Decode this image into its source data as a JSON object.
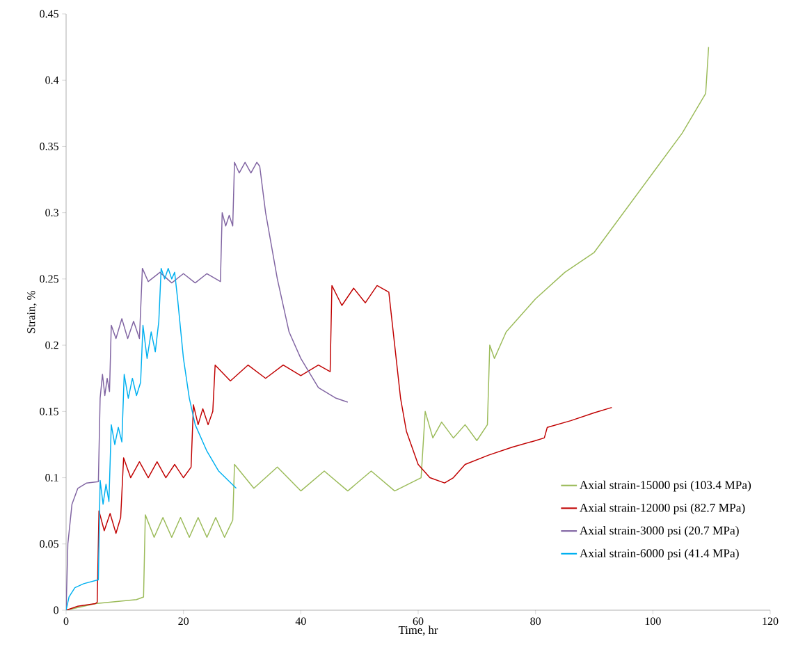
{
  "chart_data": {
    "type": "line",
    "xlabel": "Time, hr",
    "ylabel": "Strain, %",
    "xlim": [
      0,
      120
    ],
    "xticks": [
      0,
      20,
      40,
      60,
      80,
      100,
      120
    ],
    "ylim": [
      0,
      0.45
    ],
    "yticks": [
      0,
      0.05,
      0.1,
      0.15,
      0.2,
      0.25,
      0.3,
      0.35,
      0.4,
      0.45
    ],
    "grid": false,
    "legend": "bottom right",
    "series": [
      {
        "name": "Axial strain-15000 psi (103.4 MPa)",
        "color": "#9bbb59",
        "x": [
          0,
          5,
          12,
          13.2,
          13.5,
          15,
          16.5,
          18,
          19.5,
          21,
          22.5,
          24,
          25.5,
          27,
          28.4,
          28.7,
          32,
          36,
          40,
          44,
          48,
          52,
          56,
          60.5,
          61.2,
          62.5,
          64,
          66,
          68,
          70,
          71.8,
          72.2,
          73,
          75,
          80,
          85,
          90,
          95,
          100,
          105,
          109,
          109.5
        ],
        "values": [
          0,
          0.005,
          0.008,
          0.01,
          0.072,
          0.055,
          0.07,
          0.055,
          0.07,
          0.055,
          0.07,
          0.055,
          0.07,
          0.055,
          0.068,
          0.11,
          0.092,
          0.108,
          0.09,
          0.105,
          0.09,
          0.105,
          0.09,
          0.1,
          0.15,
          0.13,
          0.142,
          0.13,
          0.14,
          0.128,
          0.14,
          0.2,
          0.19,
          0.21,
          0.235,
          0.255,
          0.27,
          0.3,
          0.33,
          0.36,
          0.39,
          0.425
        ]
      },
      {
        "name": "Axial strain-12000 psi (82.7 MPa)",
        "color": "#c00000",
        "x": [
          0,
          2,
          5,
          5.3,
          5.6,
          6.5,
          7.5,
          8.5,
          9.3,
          9.8,
          11,
          12.5,
          14,
          15.5,
          17,
          18.5,
          20,
          21.3,
          21.7,
          22.5,
          23.3,
          24.2,
          25,
          25.4,
          28,
          31,
          34,
          37,
          40,
          43,
          45,
          45.3,
          47,
          49,
          51,
          53,
          55,
          56,
          57,
          58,
          60,
          62,
          64.5,
          66,
          68,
          72,
          76,
          80,
          81.5,
          82,
          86,
          90,
          93
        ],
        "values": [
          0,
          0.003,
          0.005,
          0.006,
          0.075,
          0.06,
          0.073,
          0.058,
          0.07,
          0.115,
          0.1,
          0.112,
          0.1,
          0.112,
          0.1,
          0.11,
          0.1,
          0.108,
          0.155,
          0.14,
          0.152,
          0.14,
          0.15,
          0.185,
          0.173,
          0.185,
          0.175,
          0.185,
          0.177,
          0.185,
          0.18,
          0.245,
          0.23,
          0.243,
          0.232,
          0.245,
          0.24,
          0.2,
          0.16,
          0.135,
          0.11,
          0.1,
          0.096,
          0.1,
          0.11,
          0.117,
          0.123,
          0.128,
          0.13,
          0.138,
          0.143,
          0.149,
          0.153
        ]
      },
      {
        "name": "Axial strain-3000 psi (20.7 MPa)",
        "color": "#8064a2",
        "x": [
          0,
          0.3,
          1,
          2,
          3.5,
          5.5,
          5.8,
          6.2,
          6.6,
          7,
          7.4,
          7.7,
          8.5,
          9.5,
          10.5,
          11.5,
          12.5,
          13,
          14,
          16,
          18,
          20,
          22,
          24,
          26.3,
          26.6,
          27.2,
          27.8,
          28.4,
          28.7,
          29.5,
          30.5,
          31.5,
          32.5,
          33,
          34,
          36,
          38,
          40,
          43,
          46,
          48
        ],
        "values": [
          0,
          0.05,
          0.08,
          0.092,
          0.096,
          0.097,
          0.16,
          0.178,
          0.162,
          0.175,
          0.165,
          0.215,
          0.205,
          0.22,
          0.205,
          0.218,
          0.205,
          0.258,
          0.248,
          0.255,
          0.247,
          0.254,
          0.247,
          0.254,
          0.248,
          0.3,
          0.29,
          0.298,
          0.29,
          0.338,
          0.33,
          0.338,
          0.33,
          0.338,
          0.335,
          0.3,
          0.25,
          0.21,
          0.19,
          0.168,
          0.16,
          0.157
        ]
      },
      {
        "name": "Axial strain-6000 psi (41.4 MPa)",
        "color": "#00b0f0",
        "x": [
          0,
          0.5,
          1.5,
          3,
          5.5,
          5.8,
          6.3,
          6.8,
          7.3,
          7.7,
          8.3,
          8.9,
          9.5,
          9.9,
          10.6,
          11.3,
          12,
          12.7,
          13.1,
          13.8,
          14.5,
          15.2,
          15.8,
          16.2,
          16.8,
          17.4,
          18,
          18.5,
          19,
          20,
          21,
          22,
          24,
          26,
          29
        ],
        "values": [
          0,
          0.01,
          0.017,
          0.02,
          0.023,
          0.098,
          0.08,
          0.095,
          0.082,
          0.14,
          0.125,
          0.138,
          0.127,
          0.178,
          0.16,
          0.175,
          0.162,
          0.172,
          0.215,
          0.19,
          0.21,
          0.195,
          0.218,
          0.258,
          0.25,
          0.258,
          0.25,
          0.255,
          0.235,
          0.19,
          0.16,
          0.14,
          0.12,
          0.105,
          0.092
        ]
      }
    ]
  }
}
